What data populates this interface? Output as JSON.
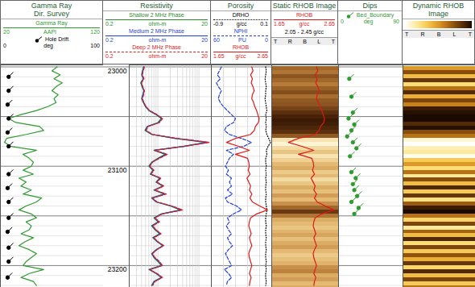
{
  "chart_data": [
    {
      "type": "depth",
      "ylim": [
        22998,
        23222
      ],
      "yticks": [
        23000,
        23100,
        23200
      ],
      "grid": true,
      "ygrid": [
        23000,
        23050,
        23100,
        23150,
        23200
      ],
      "ygrid_minor": [
        23010,
        23020,
        23030,
        23040,
        23060,
        23070,
        23080,
        23090,
        23110,
        23120,
        23130,
        23140,
        23160,
        23170,
        23180,
        23190,
        23210,
        23220
      ],
      "y": [
        23000,
        23004,
        23008,
        23012,
        23016,
        23020,
        23024,
        23028,
        23032,
        23036,
        23040,
        23044,
        23048,
        23052,
        23056,
        23060,
        23064,
        23068,
        23072,
        23076,
        23080,
        23084,
        23088,
        23092,
        23096,
        23100,
        23104,
        23108,
        23112,
        23116,
        23120,
        23124,
        23128,
        23132,
        23136,
        23140,
        23144,
        23148,
        23152,
        23156,
        23160,
        23164,
        23168,
        23172,
        23176,
        23180,
        23184,
        23188,
        23192,
        23196,
        23200,
        23204,
        23208,
        23212,
        23216,
        23220
      ]
    },
    {
      "type": "line",
      "title": [
        "Gamma Ray",
        "Dir. Survey"
      ],
      "tick_labels": false,
      "xlim": [
        20,
        120
      ],
      "series": [
        {
          "name": "Gamma Ray",
          "color": "#2e9b2e",
          "line_style": "solid",
          "xlim": [
            20,
            120
          ],
          "unit": "AAPI",
          "values": [
            75,
            70,
            78,
            72,
            80,
            74,
            70,
            76,
            72,
            74,
            66,
            55,
            40,
            28,
            35,
            58,
            62,
            45,
            26,
            24,
            30,
            55,
            42,
            48,
            52,
            50,
            42,
            52,
            38,
            45,
            40,
            50,
            42,
            60,
            55,
            45,
            38,
            50,
            55,
            45,
            50,
            48,
            40,
            52,
            44,
            38,
            48,
            55,
            50,
            45,
            42,
            62,
            48,
            40,
            52,
            55
          ]
        },
        {
          "name": "Hole Drift",
          "type": "scatter",
          "marker": "tadpole",
          "color": "#000000",
          "xlim": [
            0,
            100
          ],
          "unit": "deg",
          "y": [
            23010,
            23024,
            23038,
            23052,
            23066,
            23080,
            23108,
            23122,
            23136,
            23152,
            23166,
            23182,
            23196,
            23212
          ],
          "values": [
            8,
            8,
            7,
            8,
            7,
            8,
            8,
            7,
            8,
            8,
            7,
            8,
            8,
            7
          ]
        }
      ]
    },
    {
      "type": "line",
      "title": [
        "Resistivity"
      ],
      "log": "x",
      "xlim": [
        0.2,
        20
      ],
      "grid": true,
      "tick_labels": false,
      "xticks": [
        0.3,
        0.4,
        0.5,
        0.6,
        0.7,
        0.8,
        0.9,
        1,
        2,
        3,
        4,
        5,
        6,
        7,
        8,
        9,
        10
      ],
      "series": [
        {
          "name": "Shallow 2 MHz Phase",
          "color": "#2a8a2a",
          "line_style": "solid",
          "xlim": [
            0.2,
            20
          ],
          "unit": "ohm-m",
          "values": [
            0.45,
            0.42,
            0.4,
            0.44,
            0.38,
            0.41,
            0.45,
            0.43,
            0.4,
            0.44,
            0.5,
            0.6,
            0.9,
            1.2,
            1.0,
            0.55,
            0.48,
            0.7,
            2.5,
            15,
            4.0,
            0.8,
            1.5,
            1.0,
            0.7,
            0.6,
            0.75,
            0.65,
            1.1,
            0.9,
            1.3,
            0.8,
            1.4,
            0.7,
            0.9,
            2.0,
            3.5,
            1.2,
            0.8,
            1.0,
            0.7,
            0.85,
            1.1,
            0.75,
            0.95,
            1.3,
            0.9,
            0.7,
            0.8,
            1.0,
            1.2,
            0.6,
            0.9,
            1.2,
            0.8,
            0.7
          ]
        },
        {
          "name": "Medium 2 MHz Phase",
          "color": "#1f3fd0",
          "line_style": "solid",
          "xlim": [
            0.2,
            20
          ],
          "unit": "ohm-m",
          "values": [
            0.45,
            0.43,
            0.41,
            0.44,
            0.39,
            0.42,
            0.46,
            0.43,
            0.41,
            0.45,
            0.5,
            0.62,
            0.92,
            1.25,
            1.05,
            0.56,
            0.5,
            0.72,
            2.7,
            16,
            4.2,
            0.82,
            1.6,
            1.05,
            0.72,
            0.62,
            0.78,
            0.66,
            1.15,
            0.92,
            1.35,
            0.82,
            1.5,
            0.72,
            0.92,
            2.1,
            3.8,
            1.25,
            0.82,
            1.05,
            0.72,
            0.88,
            1.15,
            0.77,
            0.98,
            1.35,
            0.92,
            0.72,
            0.82,
            1.05,
            1.25,
            0.62,
            0.92,
            1.25,
            0.82,
            0.72
          ]
        },
        {
          "name": "Deep 2 MHz Phase",
          "color": "#e02020",
          "line_style": "dashed",
          "xlim": [
            0.2,
            20
          ],
          "unit": "ohm-m",
          "values": [
            0.47,
            0.44,
            0.42,
            0.46,
            0.4,
            0.43,
            0.47,
            0.45,
            0.42,
            0.46,
            0.52,
            0.63,
            0.95,
            1.3,
            1.1,
            0.58,
            0.52,
            0.75,
            3.0,
            18,
            4.5,
            0.85,
            1.7,
            1.1,
            0.74,
            0.64,
            0.8,
            0.68,
            1.2,
            0.95,
            1.4,
            0.85,
            1.6,
            0.74,
            0.95,
            2.2,
            4.0,
            1.3,
            0.85,
            1.1,
            0.75,
            0.9,
            1.2,
            0.8,
            1.0,
            1.4,
            0.95,
            0.74,
            0.85,
            1.1,
            1.3,
            0.64,
            0.95,
            1.3,
            0.85,
            0.75
          ]
        }
      ]
    },
    {
      "type": "line",
      "title": [
        "Porosity"
      ],
      "xlim": [
        1.65,
        2.65
      ],
      "grid": true,
      "tick_labels": false,
      "xticks": [
        1.85,
        2.05,
        2.25,
        2.45
      ],
      "series": [
        {
          "name": "DRHO",
          "color": "#000000",
          "line_style": "dotted",
          "xlim": [
            -0.9,
            0.1
          ],
          "unit": "g/cc",
          "values": [
            0,
            0.01,
            0,
            -0.01,
            0,
            0.01,
            0,
            0,
            -0.01,
            0,
            0.01,
            0.02,
            0,
            0.01,
            0,
            0.01,
            0,
            0.02,
            0.05,
            0.08,
            0.04,
            0.01,
            0.02,
            0,
            0,
            0.01,
            0,
            0.01,
            0,
            0.01,
            0,
            0,
            0.01,
            0,
            0,
            0.01,
            0.02,
            0.01,
            0,
            0,
            0.01,
            0,
            0,
            0.01,
            0,
            0,
            0.01,
            0,
            0,
            0.01,
            0,
            0.01,
            0,
            0,
            0.01,
            0
          ]
        },
        {
          "name": "NPHI",
          "color": "#2040e0",
          "line_style": "dashed",
          "xlim": [
            60,
            0
          ],
          "unit": "PU",
          "values": [
            50,
            52,
            54,
            51,
            55,
            53,
            50,
            52,
            53,
            51,
            48,
            44,
            40,
            36,
            38,
            45,
            47,
            42,
            30,
            20,
            28,
            45,
            38,
            42,
            44,
            46,
            43,
            45,
            40,
            42,
            40,
            44,
            39,
            46,
            44,
            35,
            30,
            38,
            44,
            42,
            45,
            43,
            40,
            44,
            42,
            39,
            43,
            46,
            44,
            42,
            40,
            47,
            43,
            40,
            44,
            45
          ]
        },
        {
          "name": "RHOB",
          "color": "#e01818",
          "line_style": "solid",
          "xlim": [
            1.65,
            2.65
          ],
          "unit": "g/cc",
          "values": [
            2.32,
            2.34,
            2.3,
            2.33,
            2.31,
            2.34,
            2.36,
            2.33,
            2.32,
            2.35,
            2.37,
            2.4,
            2.42,
            2.44,
            2.43,
            2.38,
            2.36,
            2.3,
            2.05,
            1.9,
            2.1,
            2.28,
            2.05,
            2.25,
            2.27,
            2.28,
            2.26,
            2.29,
            2.24,
            2.27,
            2.3,
            2.28,
            2.32,
            2.29,
            2.33,
            2.45,
            2.58,
            2.4,
            2.3,
            2.28,
            2.27,
            2.29,
            2.31,
            2.28,
            2.3,
            2.32,
            2.29,
            2.27,
            2.28,
            2.3,
            2.32,
            2.3,
            2.28,
            2.31,
            2.29,
            2.28
          ]
        }
      ]
    },
    {
      "type": "image",
      "title": [
        "Static RHOB Image"
      ],
      "tick_labels": false,
      "series": [
        {
          "name": "RHOB",
          "color": "#e01818",
          "line_style": "solid",
          "xlim": [
            1.65,
            2.65
          ],
          "unit": "g/cc",
          "values": [
            2.32,
            2.34,
            2.3,
            2.33,
            2.31,
            2.34,
            2.36,
            2.33,
            2.32,
            2.35,
            2.37,
            2.4,
            2.42,
            2.44,
            2.43,
            2.38,
            2.36,
            2.3,
            2.05,
            1.9,
            2.1,
            2.28,
            2.05,
            2.25,
            2.27,
            2.28,
            2.26,
            2.29,
            2.24,
            2.27,
            2.3,
            2.28,
            2.32,
            2.29,
            2.33,
            2.45,
            2.58,
            2.4,
            2.3,
            2.28,
            2.27,
            2.29,
            2.31,
            2.28,
            2.3,
            2.32,
            2.29,
            2.27,
            2.28,
            2.3,
            2.32,
            2.3,
            2.28,
            2.31,
            2.29,
            2.28
          ]
        }
      ],
      "image": {
        "range": [
          2.05,
          2.45
        ],
        "range_label": "2.05 - 2.45 g/cc",
        "values": [
          2.3,
          2.28,
          2.33,
          2.3,
          2.27,
          2.31,
          2.34,
          2.29,
          2.32,
          2.33,
          2.36,
          2.4,
          2.43,
          2.45,
          2.44,
          2.42,
          2.4,
          2.32,
          2.1,
          2.06,
          2.12,
          2.16,
          2.1,
          2.14,
          2.18,
          2.2,
          2.15,
          2.18,
          2.12,
          2.16,
          2.2,
          2.17,
          2.22,
          2.18,
          2.24,
          2.3,
          2.38,
          2.28,
          2.2,
          2.18,
          2.16,
          2.19,
          2.21,
          2.17,
          2.2,
          2.22,
          2.18,
          2.15,
          2.17,
          2.19,
          2.24,
          2.26,
          2.2,
          2.22,
          2.18,
          2.2
        ]
      },
      "azimuth_labels": [
        "T",
        "R",
        "B",
        "L",
        "T"
      ]
    },
    {
      "type": "scatter",
      "title": [
        "Dips"
      ],
      "xlim": [
        0,
        90
      ],
      "tick_labels": false,
      "series": [
        {
          "name": "Bed_Boundary",
          "type": "scatter",
          "marker": "tadpole",
          "color": "#2e9b2e",
          "xlim": [
            0,
            90
          ],
          "unit": "deg",
          "y": [
            23012,
            23030,
            23046,
            23052,
            23058,
            23064,
            23070,
            23076,
            23082,
            23090,
            23106,
            23112,
            23118,
            23124,
            23130,
            23136,
            23142,
            23148
          ],
          "values": [
            15,
            18,
            20,
            14,
            22,
            18,
            12,
            20,
            25,
            16,
            18,
            24,
            20,
            22,
            26,
            18,
            28,
            22
          ]
        }
      ]
    },
    {
      "type": "image",
      "title": [
        "Dynamic RHOB Image"
      ],
      "tick_labels": false,
      "image": {
        "range": [
          2.05,
          2.45
        ],
        "values": [
          2.25,
          2.35,
          2.2,
          2.38,
          2.15,
          2.3,
          2.4,
          2.22,
          2.36,
          2.28,
          2.42,
          2.44,
          2.45,
          2.45,
          2.4,
          2.44,
          2.35,
          2.3,
          2.08,
          2.05,
          2.1,
          2.12,
          2.06,
          2.18,
          2.25,
          2.15,
          2.3,
          2.12,
          2.35,
          2.2,
          2.4,
          2.18,
          2.38,
          2.14,
          2.33,
          2.42,
          2.45,
          2.3,
          2.16,
          2.36,
          2.12,
          2.32,
          2.2,
          2.4,
          2.15,
          2.36,
          2.18,
          2.34,
          2.22,
          2.38,
          2.16,
          2.4,
          2.2,
          2.36,
          2.18,
          2.3
        ]
      },
      "azimuth_labels": [
        "T",
        "R",
        "B",
        "L",
        "T"
      ]
    }
  ]
}
